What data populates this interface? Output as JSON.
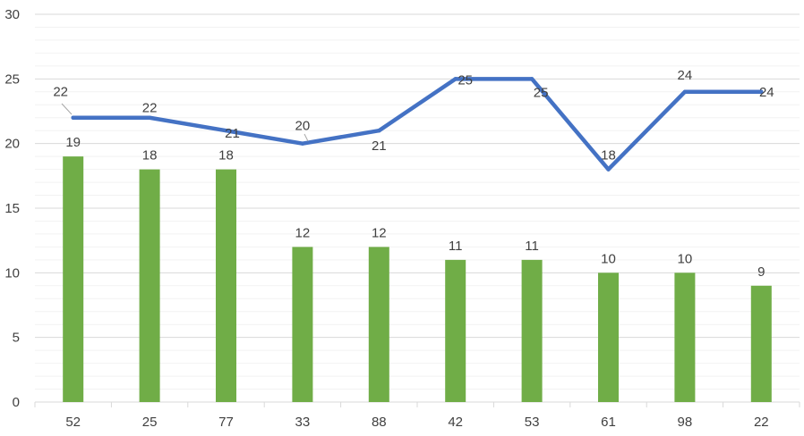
{
  "chart_data": {
    "type": "bar+line",
    "categories": [
      "52",
      "25",
      "77",
      "33",
      "88",
      "42",
      "53",
      "61",
      "98",
      "22"
    ],
    "series": [
      {
        "type": "bar",
        "color": "#70AD47",
        "values": [
          19,
          18,
          18,
          12,
          12,
          11,
          11,
          10,
          10,
          9
        ]
      },
      {
        "type": "line",
        "color": "#4472C4",
        "values": [
          22,
          22,
          21,
          20,
          21,
          25,
          25,
          18,
          24,
          24
        ]
      }
    ],
    "ylim": [
      0,
      30
    ],
    "yticks": [
      "0",
      "5",
      "10",
      "15",
      "20",
      "25",
      "30"
    ],
    "grid": true,
    "legend": "none",
    "colors": {
      "gridline": "#D9D9D9",
      "minor_gridline": "#F2F2F2",
      "axis": "#D9D9D9",
      "text": "#404040"
    }
  }
}
